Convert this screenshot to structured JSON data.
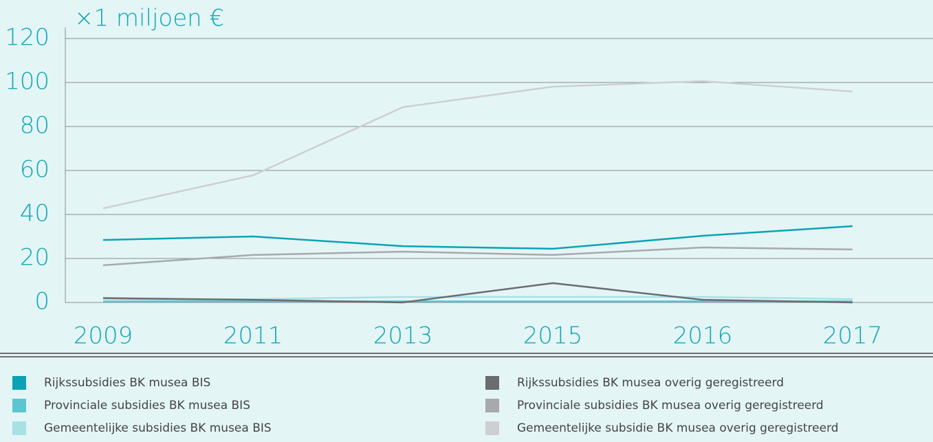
{
  "chart_data": {
    "type": "line",
    "y_unit_label": "×1 miljoen €",
    "categories": [
      "2009",
      "2011",
      "2013",
      "2015",
      "2016",
      "2017"
    ],
    "ylim": [
      0,
      120
    ],
    "yticks": [
      0,
      20,
      40,
      60,
      80,
      100,
      120
    ],
    "grid": true,
    "series": [
      {
        "name": "Rijkssubsidies BK musea BIS",
        "color": "#0aa3b5",
        "values": [
          28.4,
          30,
          25.6,
          24.4,
          30.3,
          34.7
        ]
      },
      {
        "name": "Provinciale subsidies BK musea BIS",
        "color": "#5cc6d0",
        "values": [
          0.5,
          0.5,
          0.5,
          0.5,
          0.5,
          0.5
        ]
      },
      {
        "name": "Gemeentelijke subsidies BK musea BIS",
        "color": "#a9e0e4",
        "values": [
          1,
          1.5,
          2.5,
          2.5,
          2.5,
          1.5
        ]
      },
      {
        "name": "Rijkssubsidies BK musea overig geregistreerd",
        "color": "#6a6c6e",
        "values": [
          2,
          1.2,
          0,
          8.8,
          1.2,
          0
        ]
      },
      {
        "name": "Provinciale subsidies BK musea overig geregistreerd",
        "color": "#a7a9ab",
        "values": [
          16.9,
          21.6,
          23.1,
          21.6,
          25,
          24.1
        ]
      },
      {
        "name": "Gemeentelijke subsidie BK musea overig geregistreerd",
        "color": "#cdcfd0",
        "values": [
          42.8,
          57.8,
          88.8,
          98.1,
          100.6,
          95.9
        ]
      }
    ]
  }
}
